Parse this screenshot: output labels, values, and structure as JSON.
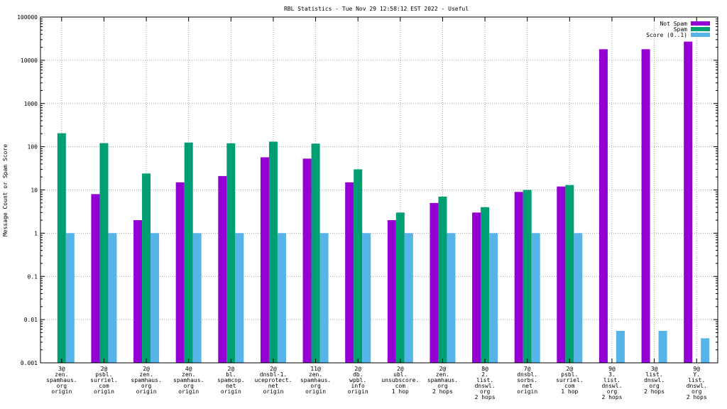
{
  "chart_data": {
    "type": "bar",
    "title": "RBL Statistics - Tue Nov 29 12:58:12 EST 2022 - Useful",
    "ylabel": "Message Count or Spam Score",
    "xlabel": "",
    "yscale": "log",
    "ylim": [
      0.001,
      100000
    ],
    "yticks": [
      "0.001",
      "0.01",
      "0.1",
      "1",
      "10",
      "100",
      "1000",
      "10000",
      "100000"
    ],
    "grid": true,
    "legend_position": "top-right",
    "categories": [
      [
        "3@",
        "zen.",
        "spamhaus.",
        "org",
        "origin"
      ],
      [
        "2@",
        "psbl.",
        "surriel.",
        "com",
        "origin"
      ],
      [
        "2@",
        "zen.",
        "spamhaus.",
        "org",
        "origin"
      ],
      [
        "4@",
        "zen.",
        "spamhaus.",
        "org",
        "origin"
      ],
      [
        "2@",
        "bl.",
        "spamcop.",
        "net",
        "origin"
      ],
      [
        "2@",
        "dnsbl-1.",
        "uceprotect.",
        "net",
        "origin"
      ],
      [
        "11@",
        "zen.",
        "spamhaus.",
        "org",
        "origin"
      ],
      [
        "2@",
        "db.",
        "wpbl.",
        "info",
        "origin"
      ],
      [
        "2@",
        "ubl.",
        "unsubscore.",
        "com",
        "1 hop"
      ],
      [
        "2@",
        "zen.",
        "spamhaus.",
        "org",
        "2 hops"
      ],
      [
        "8@",
        "2.",
        "list.",
        "dnswl.",
        "org",
        "2 hops"
      ],
      [
        "7@",
        "dnsbl.",
        "sorbs.",
        "net",
        "origin"
      ],
      [
        "2@",
        "psbl.",
        "surriel.",
        "com",
        "1 hop"
      ],
      [
        "9@",
        "3.",
        "list.",
        "dnswl.",
        "org",
        "2 hops"
      ],
      [
        "3@",
        "list.",
        "dnswl.",
        "org",
        "2 hops"
      ],
      [
        "9@",
        "Y.",
        "list.",
        "dnswl.",
        "org",
        "2 hops"
      ]
    ],
    "series": [
      {
        "name": "Not Spam",
        "color": "#9400d3",
        "values": [
          null,
          8,
          2,
          15,
          21,
          57,
          53,
          15,
          2,
          5,
          3,
          9,
          12,
          18000,
          18000,
          27000
        ]
      },
      {
        "name": "Spam",
        "color": "#009e73",
        "values": [
          205,
          121,
          24,
          125,
          120,
          131,
          118,
          30,
          3,
          7,
          4,
          10,
          13,
          null,
          null,
          null
        ]
      },
      {
        "name": "Score (0..1)",
        "color": "#56b4e9",
        "values": [
          1,
          1,
          1,
          1,
          1,
          1,
          1,
          1,
          1,
          1,
          1,
          1,
          1,
          0.0055,
          0.0055,
          0.0037
        ]
      }
    ]
  }
}
